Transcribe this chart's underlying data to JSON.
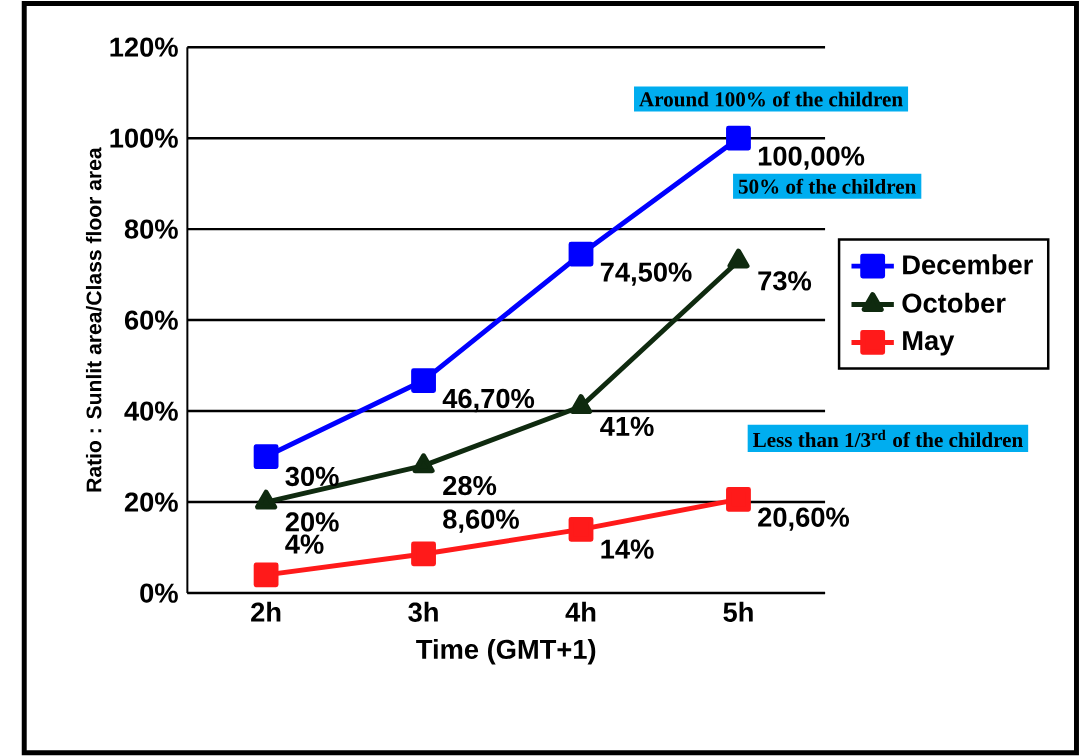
{
  "chart_data": {
    "type": "line",
    "xlabel": "Time (GMT+1)",
    "ylabel": "Ratio : Sunlit area/Class floor area",
    "categories": [
      "2h",
      "3h",
      "4h",
      "5h"
    ],
    "series": [
      {
        "name": "December",
        "color": "#0000ff",
        "marker": "square",
        "values": [
          30,
          46.7,
          74.5,
          100
        ],
        "value_labels": [
          "30%",
          "46,70%",
          "74,50%",
          "100,00%"
        ]
      },
      {
        "name": "October",
        "color": "#0f2a0f",
        "marker": "triangle",
        "values": [
          20,
          28,
          41,
          73
        ],
        "value_labels": [
          "20%",
          "28%",
          "41%",
          "73%"
        ]
      },
      {
        "name": "May",
        "color": "#ff1a1a",
        "marker": "square",
        "values": [
          4,
          8.6,
          14,
          20.6
        ],
        "value_labels": [
          "4%",
          "8,60%",
          "14%",
          "20,60%"
        ]
      }
    ],
    "ylim": [
      0,
      120
    ],
    "yticks": [
      {
        "value": 0,
        "label": "0%"
      },
      {
        "value": 20,
        "label": "20%"
      },
      {
        "value": 40,
        "label": "40%"
      },
      {
        "value": 60,
        "label": "60%"
      },
      {
        "value": 80,
        "label": "80%"
      },
      {
        "value": 100,
        "label": "100%"
      },
      {
        "value": 120,
        "label": "120%"
      }
    ],
    "grid": "y",
    "legend": "right",
    "line_style": "solid",
    "annotations": [
      "Around 100%  of the children",
      "50% of the children",
      "Less than 1/3$^{rd}$ of the children"
    ]
  }
}
